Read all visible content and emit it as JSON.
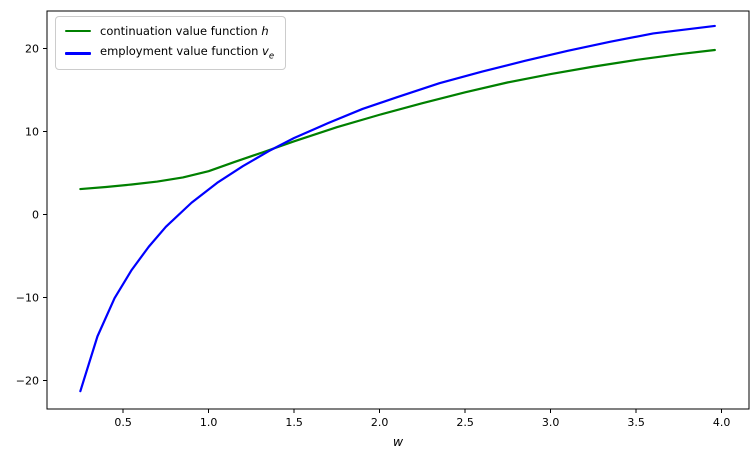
{
  "figure": {
    "background": "#ffffff",
    "xlabel": "w",
    "axis_color": "#000000",
    "legend": {
      "items": [
        {
          "name": "continuation-value-function",
          "color": "#008000",
          "label_prefix": "continuation value function ",
          "label_math": "h",
          "label_sub": ""
        },
        {
          "name": "employment-value-function",
          "color": "#0000ff",
          "label_prefix": "employment value function ",
          "label_math": "v",
          "label_sub": "e"
        }
      ]
    }
  },
  "chart_data": {
    "type": "line",
    "title": "",
    "xlabel": "w",
    "ylabel": "",
    "grid": false,
    "legend_position": "upper left",
    "xlim": [
      0.055,
      4.16
    ],
    "ylim": [
      -23.45,
      24.5
    ],
    "x_ticks": [
      0.5,
      1.0,
      1.5,
      2.0,
      2.5,
      3.0,
      3.5,
      4.0
    ],
    "x_tick_labels": [
      "0.5",
      "1.0",
      "1.5",
      "2.0",
      "2.5",
      "3.0",
      "3.5",
      "4.0"
    ],
    "y_ticks": [
      -20,
      -10,
      0,
      10,
      20
    ],
    "y_tick_labels": [
      "−20",
      "−10",
      "0",
      "10",
      "20"
    ],
    "series": [
      {
        "name": "continuation value function h",
        "color": "#008000",
        "linewidth": 2.2,
        "x": [
          0.25,
          0.4,
          0.55,
          0.7,
          0.85,
          1.0,
          1.15,
          1.32,
          1.5,
          1.75,
          2.0,
          2.25,
          2.5,
          2.75,
          3.0,
          3.25,
          3.5,
          3.75,
          3.96
        ],
        "y": [
          3.05,
          3.3,
          3.6,
          3.95,
          4.45,
          5.2,
          6.3,
          7.5,
          8.8,
          10.5,
          12.0,
          13.4,
          14.7,
          15.9,
          16.9,
          17.8,
          18.6,
          19.3,
          19.8
        ]
      },
      {
        "name": "employment value function v_e",
        "color": "#0000ff",
        "linewidth": 2.2,
        "x": [
          0.25,
          0.35,
          0.45,
          0.55,
          0.65,
          0.75,
          0.9,
          1.05,
          1.2,
          1.35,
          1.5,
          1.7,
          1.9,
          2.1,
          2.35,
          2.6,
          2.85,
          3.1,
          3.35,
          3.6,
          3.96
        ],
        "y": [
          -21.3,
          -14.7,
          -10.1,
          -6.7,
          -3.9,
          -1.5,
          1.4,
          3.8,
          5.8,
          7.6,
          9.2,
          11.0,
          12.7,
          14.1,
          15.8,
          17.2,
          18.5,
          19.7,
          20.8,
          21.8,
          22.7
        ]
      }
    ]
  }
}
